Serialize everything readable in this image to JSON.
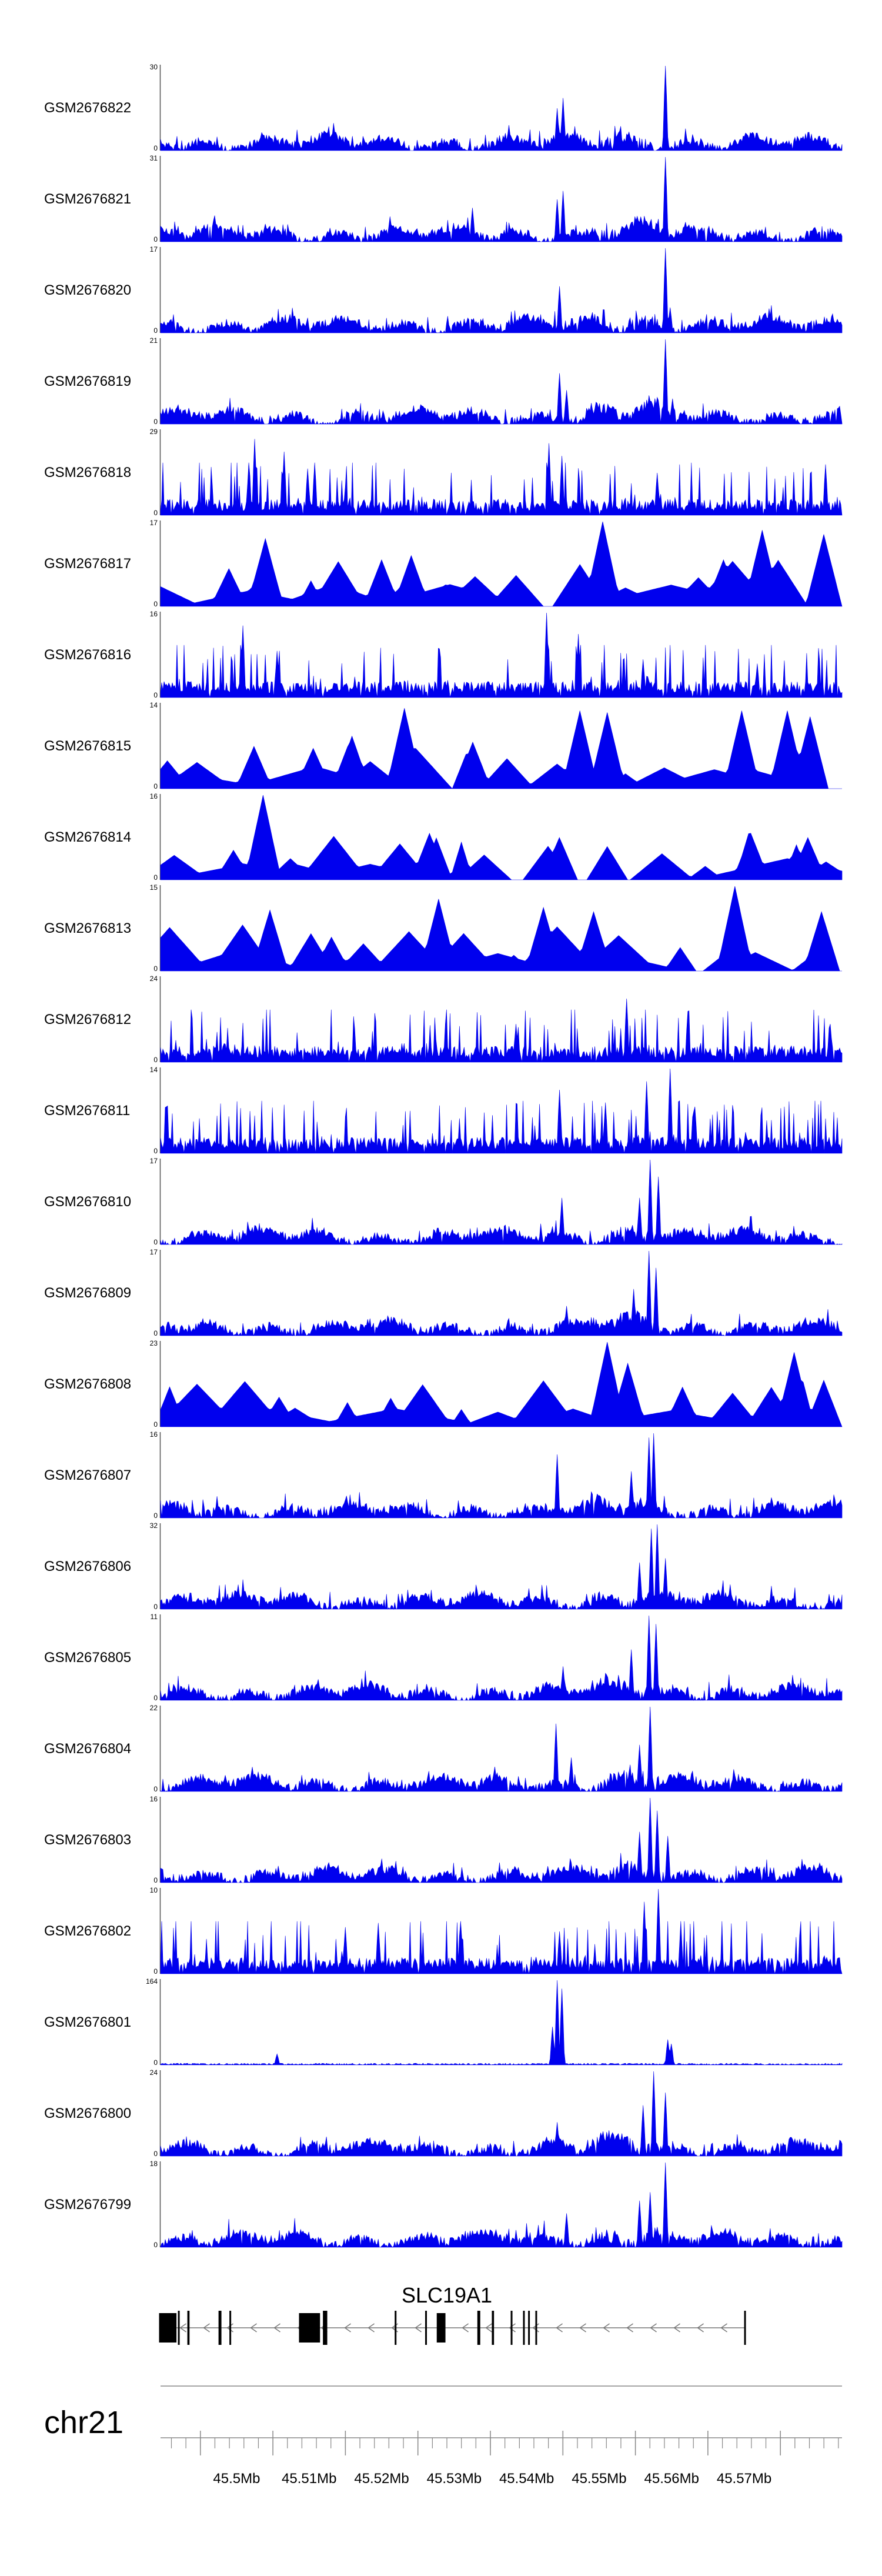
{
  "chart_data": {
    "type": "area",
    "title": "",
    "series_color": "#0000ee",
    "axis_color": "#555555",
    "genomic_range_mb": [
      45.4845,
      45.5785
    ],
    "tracks": [
      {
        "name": "GSM2676822",
        "ymax": 30,
        "ymin": 0,
        "style": "dense",
        "seed": 22,
        "peaks": [
          [
            45.5392,
            0.5
          ],
          [
            45.5401,
            0.62
          ],
          [
            45.5542,
            1.0
          ],
          [
            45.5325,
            0.3
          ]
        ]
      },
      {
        "name": "GSM2676821",
        "ymax": 31,
        "ymin": 0,
        "style": "dense",
        "seed": 21,
        "peaks": [
          [
            45.5392,
            0.5
          ],
          [
            45.5401,
            0.6
          ],
          [
            45.5542,
            1.0
          ],
          [
            45.5275,
            0.4
          ]
        ]
      },
      {
        "name": "GSM2676820",
        "ymax": 17,
        "ymin": 0,
        "style": "dense",
        "seed": 20,
        "peaks": [
          [
            45.5395,
            0.55
          ],
          [
            45.5542,
            1.0
          ],
          [
            45.5548,
            0.3
          ]
        ]
      },
      {
        "name": "GSM2676819",
        "ymax": 21,
        "ymin": 0,
        "style": "dense",
        "seed": 19,
        "peaks": [
          [
            45.5395,
            0.6
          ],
          [
            45.5405,
            0.4
          ],
          [
            45.5542,
            1.0
          ],
          [
            45.5552,
            0.3
          ]
        ]
      },
      {
        "name": "GSM2676818",
        "ymax": 29,
        "ymin": 0,
        "style": "spiky",
        "seed": 18,
        "peaks": [
          [
            45.4975,
            0.9
          ],
          [
            45.5015,
            0.75
          ],
          [
            45.5048,
            0.55
          ],
          [
            45.5058,
            0.62
          ],
          [
            45.538,
            0.85
          ],
          [
            45.5398,
            0.7
          ],
          [
            45.553,
            0.5
          ],
          [
            45.5762,
            0.6
          ]
        ]
      },
      {
        "name": "GSM2676817",
        "ymax": 17,
        "ymin": 0,
        "style": "triangles",
        "seed": 17,
        "peaks": [
          [
            45.499,
            0.8
          ],
          [
            45.5455,
            1.0
          ],
          [
            45.5675,
            0.9
          ],
          [
            45.576,
            0.85
          ],
          [
            45.515,
            0.55
          ],
          [
            45.519,
            0.6
          ],
          [
            45.562,
            0.55
          ]
        ]
      },
      {
        "name": "GSM2676816",
        "ymax": 16,
        "ymin": 0,
        "style": "spiky",
        "seed": 16,
        "peaks": [
          [
            45.4958,
            0.85
          ],
          [
            45.5005,
            0.55
          ],
          [
            45.5378,
            1.0
          ],
          [
            45.5422,
            0.75
          ],
          [
            45.551,
            0.45
          ],
          [
            45.5668,
            0.4
          ]
        ]
      },
      {
        "name": "GSM2676815",
        "ymax": 14,
        "ymin": 0,
        "style": "triangles",
        "seed": 15,
        "peaks": [
          [
            45.5108,
            0.62
          ],
          [
            45.518,
            0.95
          ],
          [
            45.5275,
            0.55
          ],
          [
            45.5422,
            0.92
          ],
          [
            45.5462,
            0.9
          ],
          [
            45.5648,
            0.92
          ],
          [
            45.5708,
            0.92
          ],
          [
            45.5742,
            0.85
          ],
          [
            45.4975,
            0.5
          ]
        ]
      },
      {
        "name": "GSM2676814",
        "ymax": 16,
        "ymin": 0,
        "style": "triangles",
        "seed": 14,
        "peaks": [
          [
            45.4985,
            1.0
          ],
          [
            45.5215,
            0.55
          ],
          [
            45.5395,
            0.5
          ],
          [
            45.5658,
            0.55
          ],
          [
            45.5738,
            0.5
          ],
          [
            45.4945,
            0.35
          ]
        ]
      },
      {
        "name": "GSM2676813",
        "ymax": 15,
        "ymin": 0,
        "style": "triangles",
        "seed": 13,
        "peaks": [
          [
            45.4995,
            0.72
          ],
          [
            45.5228,
            0.85
          ],
          [
            45.5372,
            0.75
          ],
          [
            45.5442,
            0.7
          ],
          [
            45.5638,
            1.0
          ],
          [
            45.5758,
            0.7
          ],
          [
            45.508,
            0.4
          ]
        ]
      },
      {
        "name": "GSM2676812",
        "ymax": 24,
        "ymin": 0,
        "style": "spiky",
        "seed": 12,
        "peaks": [
          [
            45.5488,
            0.75
          ],
          [
            45.5572,
            0.6
          ],
          [
            45.5335,
            0.45
          ],
          [
            45.5768,
            0.45
          ]
        ]
      },
      {
        "name": "GSM2676811",
        "ymax": 14,
        "ymin": 0,
        "style": "spiky",
        "seed": 11,
        "peaks": [
          [
            45.5395,
            0.75
          ],
          [
            45.5515,
            0.85
          ],
          [
            45.5548,
            1.0
          ],
          [
            45.5582,
            0.55
          ],
          [
            45.5458,
            0.6
          ]
        ]
      },
      {
        "name": "GSM2676810",
        "ymax": 17,
        "ymin": 0,
        "style": "dense",
        "seed": 10,
        "peaks": [
          [
            45.5398,
            0.55
          ],
          [
            45.552,
            1.0
          ],
          [
            45.5532,
            0.8
          ],
          [
            45.5505,
            0.55
          ]
        ]
      },
      {
        "name": "GSM2676809",
        "ymax": 17,
        "ymin": 0,
        "style": "dense",
        "seed": 9,
        "peaks": [
          [
            45.5518,
            1.0
          ],
          [
            45.5528,
            0.8
          ],
          [
            45.5498,
            0.55
          ],
          [
            45.5405,
            0.35
          ]
        ]
      },
      {
        "name": "GSM2676808",
        "ymax": 23,
        "ymin": 0,
        "style": "triangles",
        "seed": 8,
        "peaks": [
          [
            45.546,
            1.0
          ],
          [
            45.549,
            0.75
          ],
          [
            45.5718,
            0.88
          ],
          [
            45.576,
            0.55
          ],
          [
            45.501,
            0.35
          ]
        ]
      },
      {
        "name": "GSM2676807",
        "ymax": 16,
        "ymin": 0,
        "style": "dense",
        "seed": 7,
        "peaks": [
          [
            45.5392,
            0.75
          ],
          [
            45.5518,
            0.95
          ],
          [
            45.5526,
            1.0
          ],
          [
            45.5495,
            0.55
          ]
        ]
      },
      {
        "name": "GSM2676806",
        "ymax": 32,
        "ymin": 0,
        "style": "dense",
        "seed": 6,
        "peaks": [
          [
            45.5522,
            0.95
          ],
          [
            45.553,
            1.0
          ],
          [
            45.5505,
            0.55
          ],
          [
            45.5542,
            0.6
          ]
        ]
      },
      {
        "name": "GSM2676805",
        "ymax": 11,
        "ymin": 0,
        "style": "dense",
        "seed": 5,
        "peaks": [
          [
            45.5518,
            1.0
          ],
          [
            45.5528,
            0.9
          ],
          [
            45.5495,
            0.6
          ],
          [
            45.54,
            0.4
          ]
        ]
      },
      {
        "name": "GSM2676804",
        "ymax": 22,
        "ymin": 0,
        "style": "dense",
        "seed": 4,
        "peaks": [
          [
            45.539,
            0.8
          ],
          [
            45.552,
            1.0
          ],
          [
            45.5505,
            0.55
          ],
          [
            45.5412,
            0.4
          ]
        ]
      },
      {
        "name": "GSM2676803",
        "ymax": 16,
        "ymin": 0,
        "style": "dense",
        "seed": 3,
        "peaks": [
          [
            45.552,
            1.0
          ],
          [
            45.553,
            0.85
          ],
          [
            45.5505,
            0.6
          ],
          [
            45.5545,
            0.55
          ]
        ]
      },
      {
        "name": "GSM2676802",
        "ymax": 10,
        "ymin": 0,
        "style": "spiky",
        "seed": 2,
        "peaks": [
          [
            45.5512,
            0.85
          ],
          [
            45.5532,
            1.0
          ],
          [
            45.51,
            0.55
          ],
          [
            45.5145,
            0.6
          ],
          [
            45.5395,
            0.5
          ],
          [
            45.5562,
            0.55
          ]
        ]
      },
      {
        "name": "GSM2676801",
        "ymax": 164,
        "ymin": 0,
        "style": "sparse",
        "seed": 1,
        "peaks": [
          [
            45.5392,
            1.0
          ],
          [
            45.5398,
            0.9
          ],
          [
            45.5385,
            0.45
          ],
          [
            45.5545,
            0.3
          ],
          [
            45.555,
            0.25
          ],
          [
            45.5005,
            0.13
          ]
        ]
      },
      {
        "name": "GSM2676800",
        "ymax": 24,
        "ymin": 0,
        "style": "dense",
        "seed": 30,
        "peaks": [
          [
            45.5525,
            1.0
          ],
          [
            45.5542,
            0.75
          ],
          [
            45.551,
            0.6
          ],
          [
            45.5392,
            0.4
          ]
        ]
      },
      {
        "name": "GSM2676799",
        "ymax": 18,
        "ymin": 0,
        "style": "dense",
        "seed": 31,
        "peaks": [
          [
            45.5542,
            1.0
          ],
          [
            45.552,
            0.65
          ],
          [
            45.5505,
            0.55
          ],
          [
            45.5405,
            0.4
          ]
        ]
      }
    ],
    "gene": {
      "name": "SLC19A1",
      "strand": "-",
      "start": 45.4843,
      "end": 45.5652,
      "exons": [
        [
          45.4843,
          45.4867
        ],
        [
          45.4869,
          45.4871
        ],
        [
          45.4882,
          45.4885
        ],
        [
          45.4925,
          45.4929
        ],
        [
          45.494,
          45.4942
        ],
        [
          45.5036,
          45.5065
        ],
        [
          45.5069,
          45.5075
        ],
        [
          45.5168,
          45.517
        ],
        [
          45.521,
          45.5212
        ],
        [
          45.5226,
          45.5238
        ],
        [
          45.5282,
          45.5286
        ],
        [
          45.5302,
          45.5305
        ],
        [
          45.5328,
          45.533
        ],
        [
          45.5345,
          45.5346
        ],
        [
          45.5352,
          45.5353
        ],
        [
          45.5362,
          45.5363
        ],
        [
          45.565,
          45.5652
        ]
      ]
    },
    "chromosome": "chr21",
    "x_ticks_major": [
      45.49,
      45.5,
      45.51,
      45.52,
      45.53,
      45.54,
      45.55,
      45.56,
      45.57
    ],
    "x_tick_labels": [
      "45.5Mb",
      "45.51Mb",
      "45.52Mb",
      "45.53Mb",
      "45.54Mb",
      "45.55Mb",
      "45.56Mb",
      "45.57Mb"
    ],
    "x_tick_label_positions": [
      45.495,
      45.505,
      45.515,
      45.525,
      45.535,
      45.545,
      45.555,
      45.565
    ]
  }
}
